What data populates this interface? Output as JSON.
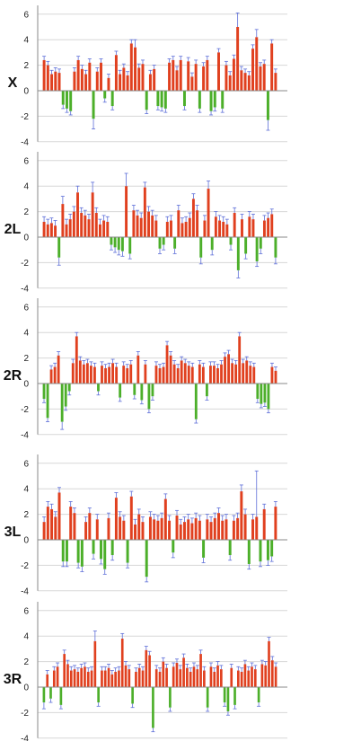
{
  "colors": {
    "positive": "#e0401f",
    "negative": "#4caf2a",
    "error_bar": "#5e6fd8",
    "grid": "#d7d7d7",
    "axis": "#8a8a8a"
  },
  "chart_data": [
    {
      "type": "bar",
      "title": "X",
      "xlabel": "",
      "ylabel": "",
      "ylim": [
        -4,
        7
      ],
      "yticks": [
        6,
        4,
        2,
        0,
        -2,
        -4
      ],
      "grid": true,
      "values": [
        2.4,
        2.0,
        1.3,
        1.5,
        1.4,
        -1.1,
        -1.4,
        -1.6,
        1.5,
        2.4,
        1.7,
        1.3,
        2.2,
        -2.2,
        1.5,
        2.2,
        -0.6,
        1.0,
        -1.2,
        2.8,
        1.3,
        1.8,
        1.2,
        3.7,
        3.4,
        1.8,
        2.1,
        -1.5,
        1.3,
        1.7,
        -1.2,
        -1.3,
        -1.4,
        2.2,
        2.4,
        1.6,
        2.4,
        -1.2,
        2.3,
        1.1,
        2.1,
        -1.4,
        1.9,
        2.4,
        -1.6,
        -1.3,
        3.0,
        -1.4,
        2.0,
        1.2,
        2.5,
        5.0,
        1.6,
        1.4,
        1.2,
        3.3,
        4.2,
        1.9,
        2.1,
        -2.3,
        3.7,
        1.4
      ],
      "errors": [
        0.3,
        0.3,
        0.3,
        0.3,
        0.3,
        0.3,
        0.3,
        0.3,
        0.3,
        0.3,
        0.3,
        0.3,
        0.3,
        0.8,
        0.3,
        0.3,
        0.3,
        0.3,
        0.3,
        0.3,
        0.3,
        0.3,
        0.3,
        0.3,
        0.6,
        0.3,
        0.3,
        0.3,
        0.3,
        0.3,
        0.3,
        0.3,
        0.3,
        0.3,
        0.3,
        0.3,
        0.3,
        0.3,
        0.3,
        0.3,
        0.3,
        0.3,
        0.3,
        0.3,
        0.3,
        0.3,
        0.3,
        0.3,
        0.3,
        0.3,
        0.3,
        1.1,
        0.3,
        0.3,
        0.3,
        0.3,
        0.6,
        0.3,
        0.3,
        0.8,
        0.3,
        0.3
      ]
    },
    {
      "type": "bar",
      "title": "2L",
      "xlabel": "",
      "ylabel": "",
      "ylim": [
        -4,
        7
      ],
      "yticks": [
        6,
        4,
        2,
        0,
        -2,
        -4
      ],
      "grid": true,
      "values": [
        1.2,
        1.0,
        1.1,
        0.9,
        -1.6,
        2.6,
        1.0,
        1.4,
        2.0,
        3.5,
        1.9,
        1.7,
        1.4,
        3.5,
        1.9,
        1.0,
        1.3,
        1.2,
        -0.6,
        -0.8,
        -1.0,
        -1.1,
        4.0,
        -1.3,
        2.1,
        1.7,
        1.5,
        3.9,
        2.0,
        1.7,
        1.3,
        -0.9,
        -0.6,
        1.2,
        1.3,
        -0.9,
        2.1,
        1.1,
        1.2,
        1.5,
        3.0,
        2.1,
        -1.6,
        1.3,
        3.8,
        -1.0,
        1.6,
        1.3,
        1.2,
        1.0,
        -0.6,
        1.9,
        -2.6,
        1.4,
        -1.3,
        1.6,
        1.4,
        -1.9,
        -0.9,
        1.3,
        1.5,
        1.8,
        -1.6
      ],
      "errors": [
        0.4,
        0.4,
        0.4,
        0.4,
        0.6,
        0.6,
        0.4,
        0.4,
        0.4,
        0.5,
        0.4,
        0.4,
        0.4,
        0.8,
        0.4,
        0.4,
        0.4,
        0.4,
        0.4,
        0.4,
        0.4,
        0.4,
        1.0,
        0.4,
        0.4,
        0.4,
        0.4,
        0.4,
        0.4,
        0.4,
        0.4,
        0.4,
        0.4,
        0.4,
        0.4,
        0.4,
        0.4,
        0.4,
        0.4,
        0.4,
        0.4,
        0.4,
        0.5,
        0.4,
        0.6,
        0.4,
        0.4,
        0.4,
        0.4,
        0.4,
        0.4,
        0.4,
        0.6,
        0.4,
        0.4,
        0.4,
        0.4,
        0.4,
        0.4,
        0.4,
        0.4,
        0.4,
        0.5
      ]
    },
    {
      "type": "bar",
      "title": "2R",
      "xlabel": "",
      "ylabel": "",
      "ylim": [
        -4,
        7
      ],
      "yticks": [
        6,
        4,
        2,
        0,
        -2,
        -4
      ],
      "grid": true,
      "values": [
        -1.2,
        -2.7,
        1.1,
        1.3,
        2.2,
        -3.0,
        -1.8,
        -0.6,
        1.6,
        3.7,
        1.8,
        1.5,
        1.6,
        1.4,
        1.3,
        -0.6,
        1.4,
        1.2,
        1.3,
        1.6,
        1.3,
        -1.1,
        1.4,
        1.2,
        1.5,
        -0.9,
        2.2,
        -1.3,
        1.5,
        -2.0,
        -1.0,
        1.4,
        1.2,
        1.3,
        3.0,
        2.2,
        1.5,
        1.2,
        1.8,
        1.6,
        1.4,
        1.3,
        -2.8,
        1.5,
        1.3,
        -1.0,
        1.4,
        1.4,
        1.2,
        1.5,
        2.1,
        2.3,
        1.6,
        1.5,
        3.7,
        1.6,
        1.8,
        1.4,
        1.3,
        -1.2,
        -1.6,
        -1.5,
        -2.0,
        1.3,
        1.0
      ],
      "errors": [
        0.3,
        0.3,
        0.3,
        0.3,
        0.3,
        0.6,
        0.3,
        0.3,
        0.3,
        0.3,
        0.3,
        0.3,
        0.3,
        0.3,
        0.3,
        0.3,
        0.3,
        0.3,
        0.3,
        0.3,
        0.3,
        0.3,
        0.3,
        0.3,
        0.3,
        0.3,
        0.3,
        0.3,
        0.3,
        0.3,
        0.3,
        0.3,
        0.3,
        0.3,
        0.3,
        0.3,
        0.3,
        0.3,
        0.3,
        0.3,
        0.3,
        0.3,
        0.3,
        0.3,
        0.3,
        0.3,
        0.3,
        0.3,
        0.3,
        0.3,
        0.3,
        0.3,
        0.3,
        0.3,
        0.3,
        0.3,
        0.3,
        0.3,
        0.3,
        0.3,
        0.3,
        0.3,
        0.3,
        0.3,
        0.3
      ]
    },
    {
      "type": "bar",
      "title": "3L",
      "xlabel": "",
      "ylabel": "",
      "ylim": [
        -4,
        7
      ],
      "yticks": [
        6,
        4,
        2,
        0,
        -2,
        -4
      ],
      "grid": true,
      "values": [
        1.4,
        2.6,
        2.4,
        1.8,
        3.7,
        -1.7,
        -1.7,
        2.6,
        2.1,
        -1.8,
        -2.1,
        1.4,
        2.1,
        -1.1,
        1.6,
        -1.5,
        -2.3,
        1.7,
        -1.2,
        3.3,
        1.8,
        1.5,
        -1.8,
        3.4,
        1.2,
        2.0,
        1.4,
        -2.9,
        1.8,
        1.6,
        1.5,
        1.7,
        3.2,
        1.5,
        -1.0,
        1.9,
        1.2,
        1.4,
        1.6,
        1.3,
        1.7,
        1.5,
        -1.4,
        1.6,
        1.4,
        1.7,
        2.1,
        1.5,
        1.6,
        -1.2,
        1.5,
        1.7,
        3.8,
        2.0,
        -1.9,
        1.6,
        1.8,
        -1.7,
        2.4,
        -1.6,
        -1.3,
        2.6
      ],
      "errors": [
        0.4,
        0.4,
        0.4,
        0.4,
        0.4,
        0.4,
        0.4,
        0.4,
        0.4,
        0.4,
        0.4,
        0.4,
        0.4,
        0.4,
        0.4,
        0.4,
        0.4,
        0.4,
        0.4,
        0.4,
        0.4,
        0.4,
        0.4,
        0.4,
        0.4,
        0.4,
        0.4,
        0.4,
        0.4,
        0.4,
        0.4,
        0.4,
        0.4,
        0.4,
        0.4,
        0.4,
        0.4,
        0.4,
        0.4,
        0.4,
        0.4,
        0.4,
        0.4,
        0.4,
        0.4,
        0.4,
        0.4,
        0.4,
        0.4,
        0.4,
        0.4,
        0.4,
        0.5,
        0.4,
        0.4,
        0.4,
        3.6,
        0.4,
        0.4,
        0.4,
        0.4,
        0.4
      ]
    },
    {
      "type": "bar",
      "title": "3R",
      "xlabel": "",
      "ylabel": "",
      "ylim": [
        -4,
        7
      ],
      "yticks": [
        6,
        4,
        2,
        0,
        -2,
        -4
      ],
      "grid": true,
      "values": [
        -1.2,
        1.0,
        -0.9,
        1.3,
        1.6,
        -1.4,
        2.6,
        1.8,
        1.3,
        1.4,
        1.2,
        1.5,
        1.6,
        1.2,
        1.3,
        3.6,
        -1.2,
        1.3,
        1.3,
        1.5,
        1.0,
        1.2,
        1.3,
        3.8,
        1.7,
        1.4,
        -1.3,
        1.2,
        1.5,
        1.3,
        2.9,
        2.5,
        -3.2,
        1.4,
        1.2,
        2.0,
        1.5,
        -1.6,
        1.6,
        1.9,
        1.4,
        2.3,
        1.5,
        1.2,
        1.6,
        1.4,
        2.6,
        1.3,
        -1.6,
        1.6,
        1.2,
        1.7,
        1.4,
        -1.2,
        -1.9,
        1.5,
        -1.4,
        1.3,
        1.2,
        1.8,
        1.3,
        1.6,
        1.4,
        -1.2,
        1.8,
        1.7,
        3.6,
        2.1,
        1.6
      ],
      "errors": [
        0.5,
        0.3,
        0.3,
        0.3,
        0.3,
        0.3,
        0.3,
        0.3,
        0.3,
        0.3,
        0.3,
        0.3,
        0.3,
        0.3,
        0.3,
        0.8,
        0.3,
        0.3,
        0.3,
        0.3,
        0.3,
        0.3,
        0.3,
        0.4,
        0.3,
        0.3,
        0.3,
        0.3,
        0.3,
        0.3,
        0.3,
        0.3,
        0.3,
        0.3,
        0.3,
        0.3,
        0.3,
        0.3,
        0.3,
        0.3,
        0.3,
        0.3,
        0.3,
        0.3,
        0.3,
        0.3,
        0.3,
        0.3,
        0.3,
        0.3,
        0.3,
        0.3,
        0.3,
        0.3,
        0.3,
        0.3,
        0.3,
        0.3,
        0.3,
        0.3,
        0.3,
        0.3,
        0.3,
        0.3,
        0.3,
        0.3,
        0.3,
        0.3,
        0.3
      ]
    }
  ]
}
